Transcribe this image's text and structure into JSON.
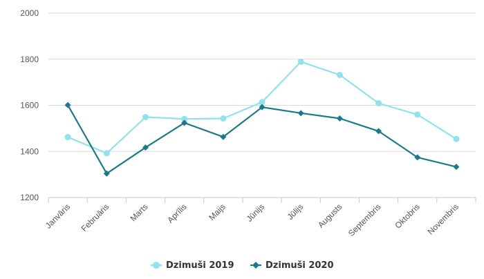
{
  "chart_data": {
    "type": "line",
    "categories": [
      "Janvāris",
      "Februāris",
      "Marts",
      "Aprīlis",
      "Maijs",
      "Jūnijs",
      "Jūlijs",
      "Augusts",
      "Septembris",
      "Oktobris",
      "Novembris"
    ],
    "series": [
      {
        "name": "Dzimuši 2019",
        "color": "#8fe3f0",
        "marker": "circle",
        "values": [
          1462,
          1392,
          1549,
          1541,
          1543,
          1614,
          1789,
          1732,
          1609,
          1560,
          1454
        ]
      },
      {
        "name": "Dzimuši 2020",
        "color": "#1a7a8c",
        "marker": "diamond",
        "values": [
          1601,
          1304,
          1417,
          1524,
          1463,
          1592,
          1566,
          1543,
          1488,
          1374,
          1333
        ]
      }
    ],
    "yticks": [
      1200,
      1400,
      1600,
      1800,
      2000
    ],
    "ylim": [
      1200,
      2000
    ],
    "grid": true,
    "legend_position": "bottom"
  }
}
